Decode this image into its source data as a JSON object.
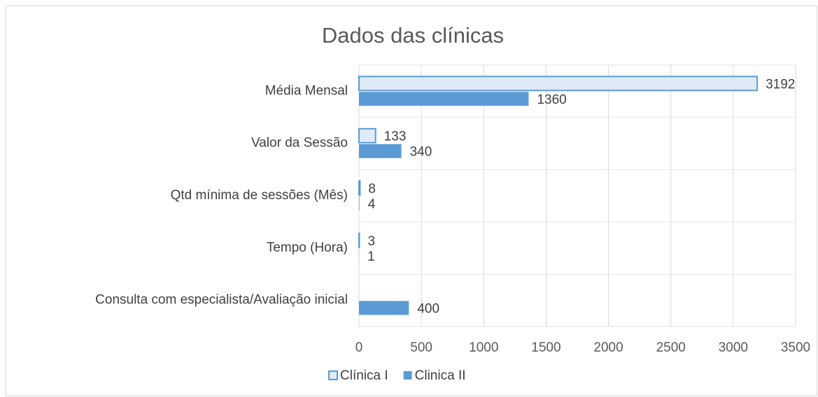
{
  "chart_data": {
    "type": "hbar",
    "title": "Dados das clínicas",
    "categories": [
      "Média Mensal",
      "Valor da Sessão",
      "Qtd mínima de sessões (Mês)",
      "Tempo  (Hora)",
      "Consulta com especialista/Avaliação inicial"
    ],
    "series": [
      {
        "name": "Clínica I",
        "color": "#deebf7",
        "edge": "#5b9bd5",
        "values": [
          3192,
          133,
          8,
          3,
          null
        ]
      },
      {
        "name": "Clinica II",
        "color": "#5b9bd5",
        "values": [
          1360,
          340,
          4,
          1,
          400
        ]
      }
    ],
    "xlim": [
      0,
      3500
    ],
    "xticks": [
      0,
      500,
      1000,
      1500,
      2000,
      2500,
      3000,
      3500
    ],
    "grid": true,
    "legend": "bottom"
  }
}
